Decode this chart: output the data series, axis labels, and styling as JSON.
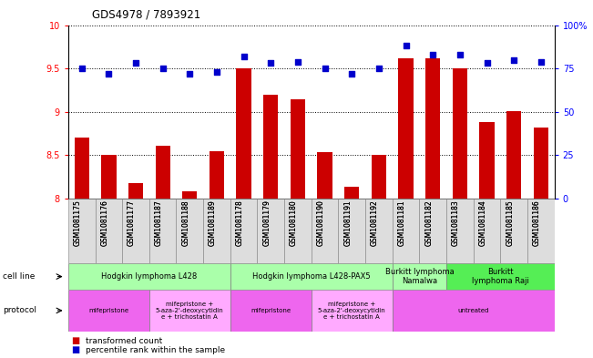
{
  "title": "GDS4978 / 7893921",
  "samples": [
    "GSM1081175",
    "GSM1081176",
    "GSM1081177",
    "GSM1081187",
    "GSM1081188",
    "GSM1081189",
    "GSM1081178",
    "GSM1081179",
    "GSM1081180",
    "GSM1081190",
    "GSM1081191",
    "GSM1081192",
    "GSM1081181",
    "GSM1081182",
    "GSM1081183",
    "GSM1081184",
    "GSM1081185",
    "GSM1081186"
  ],
  "bar_values": [
    8.7,
    8.5,
    8.18,
    8.61,
    8.09,
    8.55,
    9.5,
    9.2,
    9.15,
    8.54,
    8.14,
    8.5,
    9.62,
    9.62,
    9.5,
    8.88,
    9.01,
    8.82
  ],
  "dot_values": [
    75,
    72,
    78,
    75,
    72,
    73,
    82,
    78,
    79,
    75,
    72,
    75,
    88,
    83,
    83,
    78,
    80,
    79
  ],
  "ylim_left": [
    8,
    10
  ],
  "ylim_right": [
    0,
    100
  ],
  "yticks_left": [
    8,
    8.5,
    9,
    9.5,
    10
  ],
  "yticks_right": [
    0,
    25,
    50,
    75,
    100
  ],
  "ytick_labels_right": [
    "0",
    "25",
    "50",
    "75",
    "100%"
  ],
  "bar_color": "#CC0000",
  "dot_color": "#0000CC",
  "cell_line_groups": [
    {
      "label": "Hodgkin lymphoma L428",
      "start": 0,
      "end": 6,
      "color": "#aaffaa"
    },
    {
      "label": "Hodgkin lymphoma L428-PAX5",
      "start": 6,
      "end": 12,
      "color": "#aaffaa"
    },
    {
      "label": "Burkitt lymphoma\nNamalwa",
      "start": 12,
      "end": 14,
      "color": "#aaffaa"
    },
    {
      "label": "Burkitt\nlymphoma Raji",
      "start": 14,
      "end": 18,
      "color": "#55ee55"
    }
  ],
  "protocol_groups": [
    {
      "label": "mifepristone",
      "start": 0,
      "end": 3,
      "color": "#ee66ee"
    },
    {
      "label": "mifepristone +\n5-aza-2'-deoxycytidin\ne + trichostatin A",
      "start": 3,
      "end": 6,
      "color": "#ffaaff"
    },
    {
      "label": "mifepristone",
      "start": 6,
      "end": 9,
      "color": "#ee66ee"
    },
    {
      "label": "mifepristone +\n5-aza-2'-deoxycytidin\ne + trichostatin A",
      "start": 9,
      "end": 12,
      "color": "#ffaaff"
    },
    {
      "label": "untreated",
      "start": 12,
      "end": 18,
      "color": "#ee66ee"
    }
  ]
}
